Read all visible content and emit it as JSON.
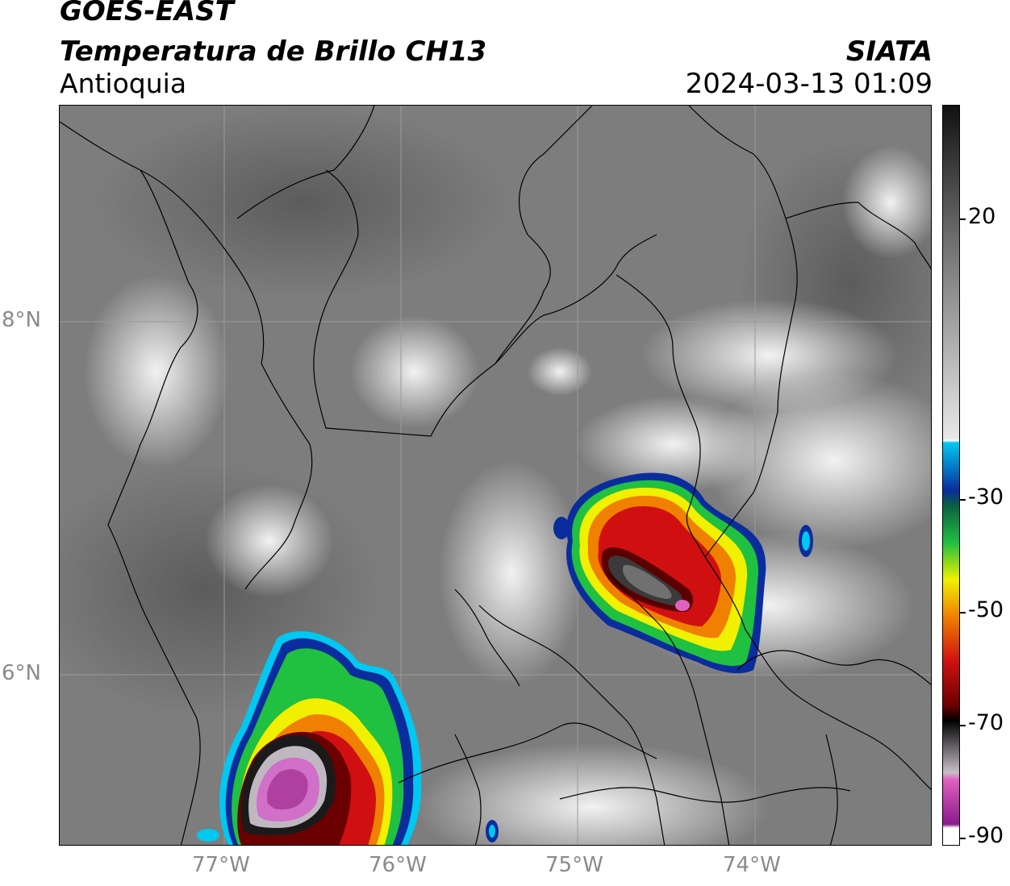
{
  "header": {
    "satellite": "GOES-EAST",
    "product": "Temperatura de Brillo CH13",
    "region": "Antioquia",
    "organization": "SIATA",
    "timestamp": "2024-03-13 01:09"
  },
  "map": {
    "lon_labels": [
      "77°W",
      "76°W",
      "75°W",
      "74°W"
    ],
    "lat_labels": [
      "8°N",
      "6°N"
    ]
  },
  "colorbar": {
    "tick_labels": [
      "20",
      "-30",
      "-50",
      "-70",
      "-90"
    ],
    "colors": {
      "warm_gray": "#6e6e6e",
      "light_gray": "#e8e8e8",
      "cyan": "#00c8f0",
      "blue": "#0a2c9c",
      "green": "#20c040",
      "yellow": "#f0f000",
      "orange": "#f08000",
      "red": "#d01010",
      "dark_red": "#6a0000",
      "black": "#000000",
      "pink": "#e060c0",
      "purple": "#8a1a8a"
    }
  }
}
